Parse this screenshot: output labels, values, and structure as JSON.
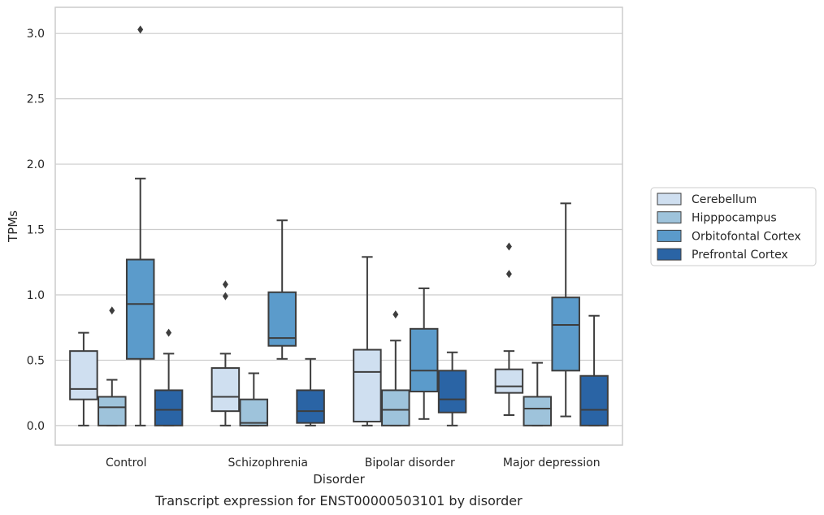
{
  "chart_data": {
    "type": "box",
    "xlabel": "Disorder",
    "ylabel": "TPMs",
    "caption": "Transcript expression for ENST00000503101 by disorder",
    "ylim": [
      -0.15,
      3.2
    ],
    "yticks": [
      "0.0",
      "0.5",
      "1.0",
      "1.5",
      "2.0",
      "2.5",
      "3.0"
    ],
    "grid": "horizontal",
    "legend_position": "right",
    "categories": [
      "Control",
      "Schizophrenia",
      "Bipolar disorder",
      "Major depression"
    ],
    "series": [
      {
        "name": "Cerebellum",
        "color": "#cfdff0",
        "boxes": [
          {
            "whisker_low": 0.0,
            "q1": 0.2,
            "median": 0.28,
            "q3": 0.57,
            "whisker_high": 0.71,
            "outliers": []
          },
          {
            "whisker_low": 0.0,
            "q1": 0.11,
            "median": 0.22,
            "q3": 0.44,
            "whisker_high": 0.55,
            "outliers": [
              0.99,
              1.08
            ]
          },
          {
            "whisker_low": 0.0,
            "q1": 0.03,
            "median": 0.41,
            "q3": 0.58,
            "whisker_high": 1.29,
            "outliers": []
          },
          {
            "whisker_low": 0.08,
            "q1": 0.25,
            "median": 0.3,
            "q3": 0.43,
            "whisker_high": 0.57,
            "outliers": [
              1.16,
              1.37
            ]
          }
        ]
      },
      {
        "name": "Hipppocampus",
        "color": "#9ec3db",
        "boxes": [
          {
            "whisker_low": 0.0,
            "q1": 0.0,
            "median": 0.14,
            "q3": 0.22,
            "whisker_high": 0.35,
            "outliers": [
              0.88
            ]
          },
          {
            "whisker_low": 0.0,
            "q1": 0.0,
            "median": 0.02,
            "q3": 0.2,
            "whisker_high": 0.4,
            "outliers": []
          },
          {
            "whisker_low": 0.0,
            "q1": 0.0,
            "median": 0.12,
            "q3": 0.27,
            "whisker_high": 0.65,
            "outliers": [
              0.85
            ]
          },
          {
            "whisker_low": 0.0,
            "q1": 0.0,
            "median": 0.13,
            "q3": 0.22,
            "whisker_high": 0.48,
            "outliers": []
          }
        ]
      },
      {
        "name": "Orbitofontal Cortex",
        "color": "#5b9bcb",
        "boxes": [
          {
            "whisker_low": 0.0,
            "q1": 0.51,
            "median": 0.93,
            "q3": 1.27,
            "whisker_high": 1.89,
            "outliers": [
              3.03
            ]
          },
          {
            "whisker_low": 0.51,
            "q1": 0.61,
            "median": 0.67,
            "q3": 1.02,
            "whisker_high": 1.57,
            "outliers": []
          },
          {
            "whisker_low": 0.05,
            "q1": 0.26,
            "median": 0.42,
            "q3": 0.74,
            "whisker_high": 1.05,
            "outliers": []
          },
          {
            "whisker_low": 0.07,
            "q1": 0.42,
            "median": 0.77,
            "q3": 0.98,
            "whisker_high": 1.7,
            "outliers": []
          }
        ]
      },
      {
        "name": "Prefrontal Cortex",
        "color": "#2a64a5",
        "boxes": [
          {
            "whisker_low": 0.0,
            "q1": 0.0,
            "median": 0.12,
            "q3": 0.27,
            "whisker_high": 0.55,
            "outliers": [
              0.71
            ]
          },
          {
            "whisker_low": 0.0,
            "q1": 0.02,
            "median": 0.11,
            "q3": 0.27,
            "whisker_high": 0.51,
            "outliers": []
          },
          {
            "whisker_low": 0.0,
            "q1": 0.1,
            "median": 0.2,
            "q3": 0.42,
            "whisker_high": 0.56,
            "outliers": []
          },
          {
            "whisker_low": 0.0,
            "q1": 0.0,
            "median": 0.12,
            "q3": 0.38,
            "whisker_high": 0.84,
            "outliers": []
          }
        ]
      }
    ]
  }
}
